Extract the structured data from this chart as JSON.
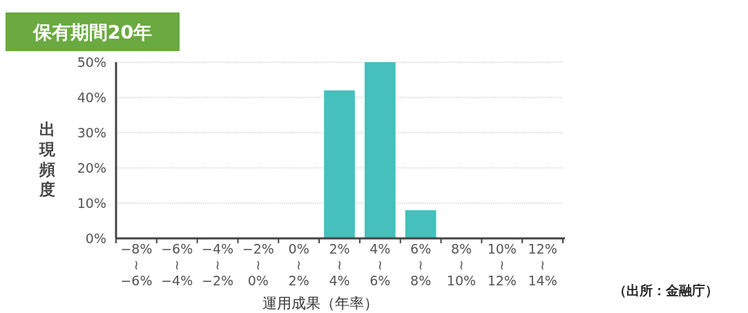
{
  "chart_data": {
    "type": "bar",
    "title": "保有期間20年",
    "categories": [
      "−8%\n≀\n−6%",
      "−6%\n≀\n−4%",
      "−4%\n≀\n−2%",
      "−2%\n≀\n0%",
      "0%\n≀\n2%",
      "2%\n≀\n4%",
      "4%\n≀\n6%",
      "6%\n≀\n8%",
      "8%\n≀\n10%",
      "10%\n≀\n12%",
      "12%\n≀\n14%"
    ],
    "values": [
      0,
      0,
      0,
      0,
      0,
      42,
      50,
      8,
      0,
      0,
      0
    ],
    "color": "#45c0bc",
    "ylim": [
      0,
      50
    ],
    "yticks": [
      {
        "value": 0,
        "label": "0%"
      },
      {
        "value": 10,
        "label": "10%"
      },
      {
        "value": 20,
        "label": "20%"
      },
      {
        "value": 30,
        "label": "30%"
      },
      {
        "value": 40,
        "label": "40%"
      },
      {
        "value": 50,
        "label": "50%"
      }
    ],
    "grid": "y",
    "xlabel": "運用成果（年率）",
    "ylabel": "出現頻度",
    "annotations": [
      "（出所：金融庁）"
    ]
  }
}
